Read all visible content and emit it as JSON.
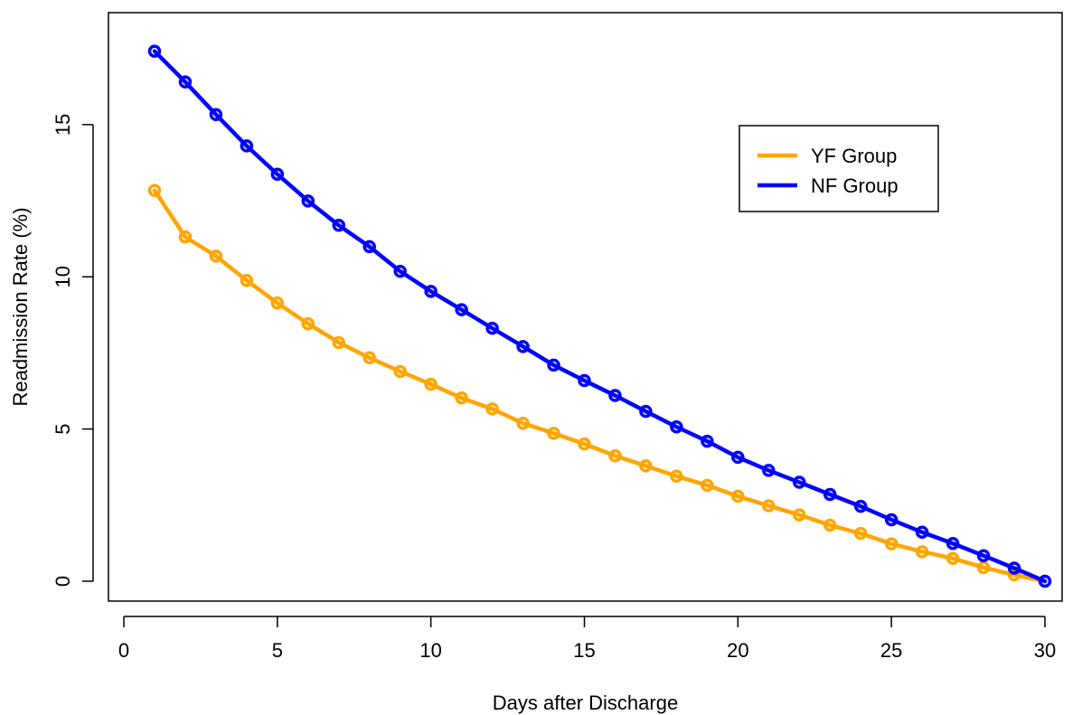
{
  "chart_data": {
    "type": "line",
    "xlabel": "Days after Discharge",
    "ylabel": "Readmission Rate (%)",
    "xlim": [
      0,
      30
    ],
    "ylim": [
      0,
      17.4
    ],
    "x_ticks": [
      0,
      5,
      10,
      15,
      20,
      25,
      30
    ],
    "y_ticks": [
      0,
      5,
      10,
      15
    ],
    "grid": false,
    "legend_position": "top-right",
    "x": [
      1,
      2,
      3,
      4,
      5,
      6,
      7,
      8,
      9,
      10,
      11,
      12,
      13,
      14,
      15,
      16,
      17,
      18,
      19,
      20,
      21,
      22,
      23,
      24,
      25,
      26,
      27,
      28,
      29,
      30
    ],
    "series": [
      {
        "name": "YF Group",
        "color": "#FFA500",
        "values": [
          12.84,
          11.31,
          10.68,
          9.88,
          9.14,
          8.46,
          7.84,
          7.34,
          6.89,
          6.47,
          6.02,
          5.66,
          5.19,
          4.86,
          4.51,
          4.12,
          3.79,
          3.45,
          3.15,
          2.79,
          2.48,
          2.18,
          1.84,
          1.57,
          1.23,
          0.97,
          0.75,
          0.45,
          0.21,
          0.0
        ]
      },
      {
        "name": "NF Group",
        "color": "#0000FF",
        "values": [
          17.41,
          16.4,
          15.33,
          14.3,
          13.37,
          12.49,
          11.69,
          10.99,
          10.18,
          9.52,
          8.92,
          8.31,
          7.71,
          7.1,
          6.59,
          6.1,
          5.58,
          5.07,
          4.6,
          4.07,
          3.64,
          3.25,
          2.85,
          2.46,
          2.02,
          1.61,
          1.24,
          0.84,
          0.43,
          0.0
        ]
      }
    ]
  }
}
